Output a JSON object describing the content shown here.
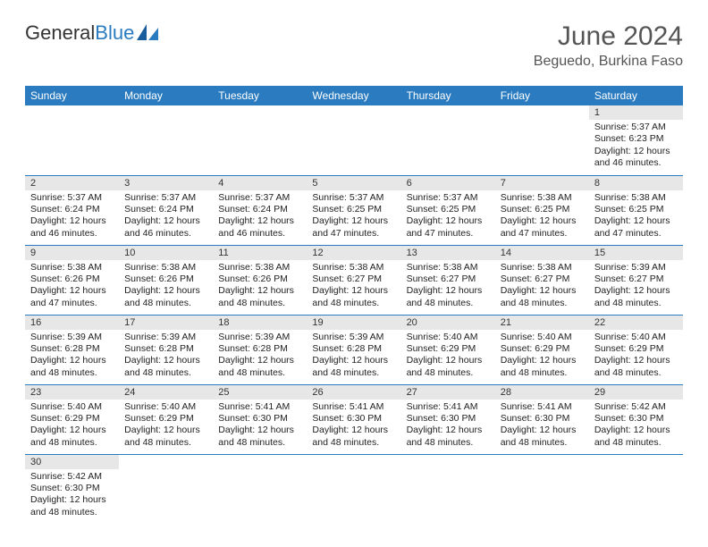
{
  "brand": {
    "part1": "General",
    "part2": "Blue"
  },
  "title": "June 2024",
  "location": "Beguedo, Burkina Faso",
  "colors": {
    "header_bg": "#2a7bbf",
    "daynum_bg": "#e7e7e7",
    "border": "#2a7bbf"
  },
  "weekdays": [
    "Sunday",
    "Monday",
    "Tuesday",
    "Wednesday",
    "Thursday",
    "Friday",
    "Saturday"
  ],
  "cells": [
    {
      "day": "",
      "lines": []
    },
    {
      "day": "",
      "lines": []
    },
    {
      "day": "",
      "lines": []
    },
    {
      "day": "",
      "lines": []
    },
    {
      "day": "",
      "lines": []
    },
    {
      "day": "",
      "lines": []
    },
    {
      "day": "1",
      "lines": [
        "Sunrise: 5:37 AM",
        "Sunset: 6:23 PM",
        "Daylight: 12 hours",
        "and 46 minutes."
      ]
    },
    {
      "day": "2",
      "lines": [
        "Sunrise: 5:37 AM",
        "Sunset: 6:24 PM",
        "Daylight: 12 hours",
        "and 46 minutes."
      ]
    },
    {
      "day": "3",
      "lines": [
        "Sunrise: 5:37 AM",
        "Sunset: 6:24 PM",
        "Daylight: 12 hours",
        "and 46 minutes."
      ]
    },
    {
      "day": "4",
      "lines": [
        "Sunrise: 5:37 AM",
        "Sunset: 6:24 PM",
        "Daylight: 12 hours",
        "and 46 minutes."
      ]
    },
    {
      "day": "5",
      "lines": [
        "Sunrise: 5:37 AM",
        "Sunset: 6:25 PM",
        "Daylight: 12 hours",
        "and 47 minutes."
      ]
    },
    {
      "day": "6",
      "lines": [
        "Sunrise: 5:37 AM",
        "Sunset: 6:25 PM",
        "Daylight: 12 hours",
        "and 47 minutes."
      ]
    },
    {
      "day": "7",
      "lines": [
        "Sunrise: 5:38 AM",
        "Sunset: 6:25 PM",
        "Daylight: 12 hours",
        "and 47 minutes."
      ]
    },
    {
      "day": "8",
      "lines": [
        "Sunrise: 5:38 AM",
        "Sunset: 6:25 PM",
        "Daylight: 12 hours",
        "and 47 minutes."
      ]
    },
    {
      "day": "9",
      "lines": [
        "Sunrise: 5:38 AM",
        "Sunset: 6:26 PM",
        "Daylight: 12 hours",
        "and 47 minutes."
      ]
    },
    {
      "day": "10",
      "lines": [
        "Sunrise: 5:38 AM",
        "Sunset: 6:26 PM",
        "Daylight: 12 hours",
        "and 48 minutes."
      ]
    },
    {
      "day": "11",
      "lines": [
        "Sunrise: 5:38 AM",
        "Sunset: 6:26 PM",
        "Daylight: 12 hours",
        "and 48 minutes."
      ]
    },
    {
      "day": "12",
      "lines": [
        "Sunrise: 5:38 AM",
        "Sunset: 6:27 PM",
        "Daylight: 12 hours",
        "and 48 minutes."
      ]
    },
    {
      "day": "13",
      "lines": [
        "Sunrise: 5:38 AM",
        "Sunset: 6:27 PM",
        "Daylight: 12 hours",
        "and 48 minutes."
      ]
    },
    {
      "day": "14",
      "lines": [
        "Sunrise: 5:38 AM",
        "Sunset: 6:27 PM",
        "Daylight: 12 hours",
        "and 48 minutes."
      ]
    },
    {
      "day": "15",
      "lines": [
        "Sunrise: 5:39 AM",
        "Sunset: 6:27 PM",
        "Daylight: 12 hours",
        "and 48 minutes."
      ]
    },
    {
      "day": "16",
      "lines": [
        "Sunrise: 5:39 AM",
        "Sunset: 6:28 PM",
        "Daylight: 12 hours",
        "and 48 minutes."
      ]
    },
    {
      "day": "17",
      "lines": [
        "Sunrise: 5:39 AM",
        "Sunset: 6:28 PM",
        "Daylight: 12 hours",
        "and 48 minutes."
      ]
    },
    {
      "day": "18",
      "lines": [
        "Sunrise: 5:39 AM",
        "Sunset: 6:28 PM",
        "Daylight: 12 hours",
        "and 48 minutes."
      ]
    },
    {
      "day": "19",
      "lines": [
        "Sunrise: 5:39 AM",
        "Sunset: 6:28 PM",
        "Daylight: 12 hours",
        "and 48 minutes."
      ]
    },
    {
      "day": "20",
      "lines": [
        "Sunrise: 5:40 AM",
        "Sunset: 6:29 PM",
        "Daylight: 12 hours",
        "and 48 minutes."
      ]
    },
    {
      "day": "21",
      "lines": [
        "Sunrise: 5:40 AM",
        "Sunset: 6:29 PM",
        "Daylight: 12 hours",
        "and 48 minutes."
      ]
    },
    {
      "day": "22",
      "lines": [
        "Sunrise: 5:40 AM",
        "Sunset: 6:29 PM",
        "Daylight: 12 hours",
        "and 48 minutes."
      ]
    },
    {
      "day": "23",
      "lines": [
        "Sunrise: 5:40 AM",
        "Sunset: 6:29 PM",
        "Daylight: 12 hours",
        "and 48 minutes."
      ]
    },
    {
      "day": "24",
      "lines": [
        "Sunrise: 5:40 AM",
        "Sunset: 6:29 PM",
        "Daylight: 12 hours",
        "and 48 minutes."
      ]
    },
    {
      "day": "25",
      "lines": [
        "Sunrise: 5:41 AM",
        "Sunset: 6:30 PM",
        "Daylight: 12 hours",
        "and 48 minutes."
      ]
    },
    {
      "day": "26",
      "lines": [
        "Sunrise: 5:41 AM",
        "Sunset: 6:30 PM",
        "Daylight: 12 hours",
        "and 48 minutes."
      ]
    },
    {
      "day": "27",
      "lines": [
        "Sunrise: 5:41 AM",
        "Sunset: 6:30 PM",
        "Daylight: 12 hours",
        "and 48 minutes."
      ]
    },
    {
      "day": "28",
      "lines": [
        "Sunrise: 5:41 AM",
        "Sunset: 6:30 PM",
        "Daylight: 12 hours",
        "and 48 minutes."
      ]
    },
    {
      "day": "29",
      "lines": [
        "Sunrise: 5:42 AM",
        "Sunset: 6:30 PM",
        "Daylight: 12 hours",
        "and 48 minutes."
      ]
    },
    {
      "day": "30",
      "lines": [
        "Sunrise: 5:42 AM",
        "Sunset: 6:30 PM",
        "Daylight: 12 hours",
        "and 48 minutes."
      ]
    },
    {
      "day": "",
      "lines": []
    },
    {
      "day": "",
      "lines": []
    },
    {
      "day": "",
      "lines": []
    },
    {
      "day": "",
      "lines": []
    },
    {
      "day": "",
      "lines": []
    },
    {
      "day": "",
      "lines": []
    }
  ]
}
